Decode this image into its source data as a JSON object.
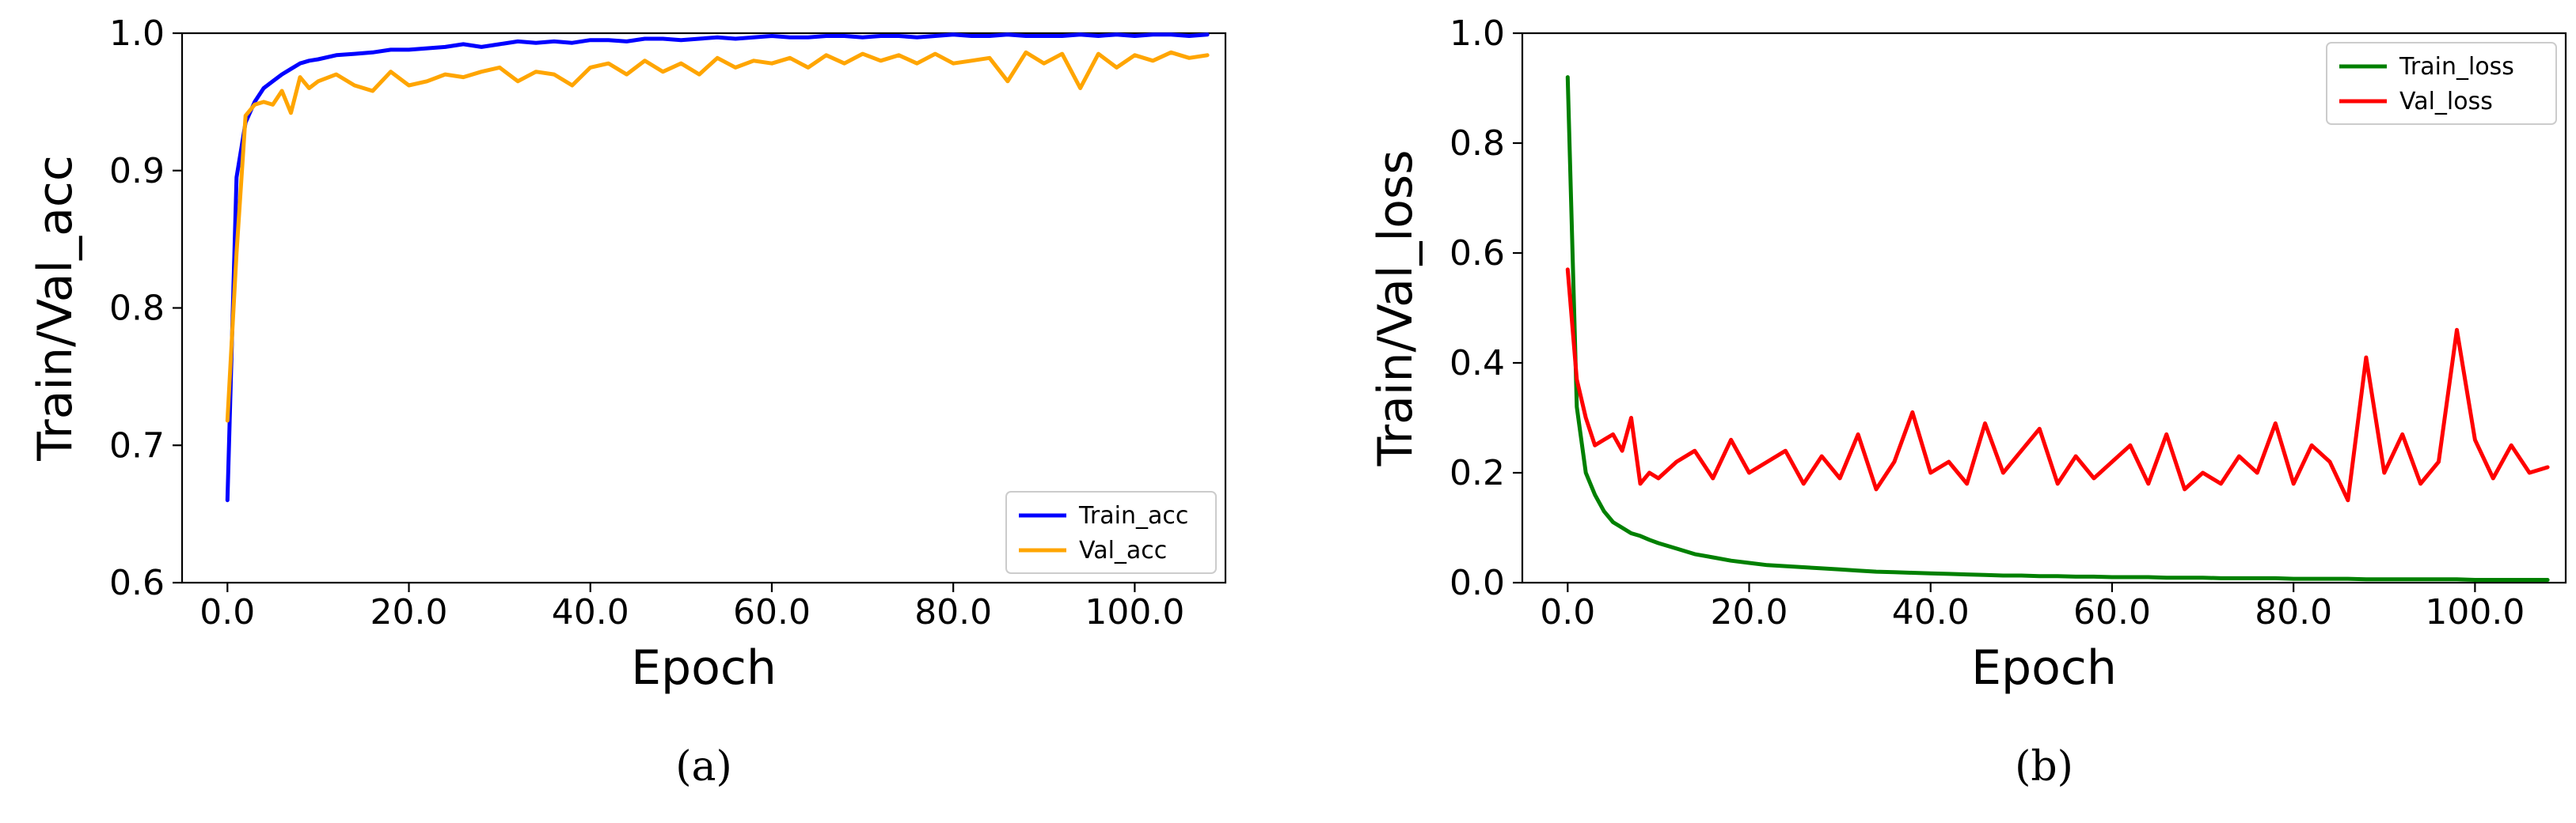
{
  "captions": [
    "(a)",
    "(b)"
  ],
  "chart_data": [
    {
      "type": "line",
      "panel": "(a)",
      "xlabel": "Epoch",
      "ylabel": "Train/Val_acc",
      "xlim": [
        -5,
        110
      ],
      "ylim": [
        0.6,
        1.0
      ],
      "xticks": [
        0,
        20,
        40,
        60,
        80,
        100
      ],
      "xtick_labels": [
        "0.0",
        "20.0",
        "40.0",
        "60.0",
        "80.0",
        "100.0"
      ],
      "yticks": [
        0.6,
        0.7,
        0.8,
        0.9,
        1.0
      ],
      "ytick_labels": [
        "0.6",
        "0.7",
        "0.8",
        "0.9",
        "1.0"
      ],
      "grid": false,
      "legend_position": "bottom-right",
      "series": [
        {
          "name": "Train_acc",
          "color": "#0000ff",
          "x": [
            0,
            1,
            2,
            3,
            4,
            5,
            6,
            7,
            8,
            9,
            10,
            12,
            14,
            16,
            18,
            20,
            22,
            24,
            26,
            28,
            30,
            32,
            34,
            36,
            38,
            40,
            42,
            44,
            46,
            48,
            50,
            52,
            54,
            56,
            58,
            60,
            62,
            64,
            66,
            68,
            70,
            72,
            74,
            76,
            78,
            80,
            82,
            84,
            86,
            88,
            90,
            92,
            94,
            96,
            98,
            100,
            102,
            104,
            106,
            108
          ],
          "y": [
            0.66,
            0.895,
            0.935,
            0.95,
            0.96,
            0.965,
            0.97,
            0.974,
            0.978,
            0.98,
            0.981,
            0.984,
            0.985,
            0.986,
            0.988,
            0.988,
            0.989,
            0.99,
            0.992,
            0.99,
            0.992,
            0.994,
            0.993,
            0.994,
            0.993,
            0.995,
            0.995,
            0.994,
            0.996,
            0.996,
            0.995,
            0.996,
            0.997,
            0.996,
            0.997,
            0.998,
            0.997,
            0.997,
            0.998,
            0.998,
            0.997,
            0.998,
            0.998,
            0.997,
            0.998,
            0.999,
            0.998,
            0.998,
            0.999,
            0.998,
            0.998,
            0.998,
            0.999,
            0.998,
            0.999,
            0.998,
            0.999,
            0.999,
            0.998,
            0.999
          ]
        },
        {
          "name": "Val_acc",
          "color": "#ffa500",
          "x": [
            0,
            1,
            2,
            3,
            4,
            5,
            6,
            7,
            8,
            9,
            10,
            12,
            14,
            16,
            18,
            20,
            22,
            24,
            26,
            28,
            30,
            32,
            34,
            36,
            38,
            40,
            42,
            44,
            46,
            48,
            50,
            52,
            54,
            56,
            58,
            60,
            62,
            64,
            66,
            68,
            70,
            72,
            74,
            76,
            78,
            80,
            82,
            84,
            86,
            88,
            90,
            92,
            94,
            96,
            98,
            100,
            102,
            104,
            106,
            108
          ],
          "y": [
            0.718,
            0.84,
            0.94,
            0.948,
            0.95,
            0.948,
            0.958,
            0.942,
            0.968,
            0.96,
            0.965,
            0.97,
            0.962,
            0.958,
            0.972,
            0.962,
            0.965,
            0.97,
            0.968,
            0.972,
            0.975,
            0.965,
            0.972,
            0.97,
            0.962,
            0.975,
            0.978,
            0.97,
            0.98,
            0.972,
            0.978,
            0.97,
            0.982,
            0.975,
            0.98,
            0.978,
            0.982,
            0.975,
            0.984,
            0.978,
            0.985,
            0.98,
            0.984,
            0.978,
            0.985,
            0.978,
            0.98,
            0.982,
            0.965,
            0.986,
            0.978,
            0.985,
            0.96,
            0.985,
            0.975,
            0.984,
            0.98,
            0.986,
            0.982,
            0.984
          ]
        }
      ]
    },
    {
      "type": "line",
      "panel": "(b)",
      "xlabel": "Epoch",
      "ylabel": "Train/Val_loss",
      "xlim": [
        -5,
        110
      ],
      "ylim": [
        0.0,
        1.0
      ],
      "xticks": [
        0,
        20,
        40,
        60,
        80,
        100
      ],
      "xtick_labels": [
        "0.0",
        "20.0",
        "40.0",
        "60.0",
        "80.0",
        "100.0"
      ],
      "yticks": [
        0.0,
        0.2,
        0.4,
        0.6,
        0.8,
        1.0
      ],
      "ytick_labels": [
        "0.0",
        "0.2",
        "0.4",
        "0.6",
        "0.8",
        "1.0"
      ],
      "grid": false,
      "legend_position": "top-right",
      "series": [
        {
          "name": "Train_loss",
          "color": "#008000",
          "x": [
            0,
            1,
            2,
            3,
            4,
            5,
            6,
            7,
            8,
            9,
            10,
            12,
            14,
            16,
            18,
            20,
            22,
            24,
            26,
            28,
            30,
            32,
            34,
            36,
            38,
            40,
            42,
            44,
            46,
            48,
            50,
            52,
            54,
            56,
            58,
            60,
            62,
            64,
            66,
            68,
            70,
            72,
            74,
            76,
            78,
            80,
            82,
            84,
            86,
            88,
            90,
            92,
            94,
            96,
            98,
            100,
            102,
            104,
            106,
            108
          ],
          "y": [
            0.92,
            0.32,
            0.2,
            0.16,
            0.13,
            0.11,
            0.1,
            0.09,
            0.085,
            0.078,
            0.072,
            0.062,
            0.052,
            0.046,
            0.04,
            0.036,
            0.032,
            0.03,
            0.028,
            0.026,
            0.024,
            0.022,
            0.02,
            0.019,
            0.018,
            0.017,
            0.016,
            0.015,
            0.014,
            0.013,
            0.013,
            0.012,
            0.012,
            0.011,
            0.011,
            0.01,
            0.01,
            0.01,
            0.009,
            0.009,
            0.009,
            0.008,
            0.008,
            0.008,
            0.008,
            0.007,
            0.007,
            0.007,
            0.007,
            0.006,
            0.006,
            0.006,
            0.006,
            0.006,
            0.006,
            0.005,
            0.005,
            0.005,
            0.005,
            0.005
          ]
        },
        {
          "name": "Val_loss",
          "color": "#ff0000",
          "x": [
            0,
            1,
            2,
            3,
            4,
            5,
            6,
            7,
            8,
            9,
            10,
            12,
            14,
            16,
            18,
            20,
            22,
            24,
            26,
            28,
            30,
            32,
            34,
            36,
            38,
            40,
            42,
            44,
            46,
            48,
            50,
            52,
            54,
            56,
            58,
            60,
            62,
            64,
            66,
            68,
            70,
            72,
            74,
            76,
            78,
            80,
            82,
            84,
            86,
            88,
            90,
            92,
            94,
            96,
            98,
            100,
            102,
            104,
            106,
            108
          ],
          "y": [
            0.57,
            0.37,
            0.3,
            0.25,
            0.26,
            0.27,
            0.24,
            0.3,
            0.18,
            0.2,
            0.19,
            0.22,
            0.24,
            0.19,
            0.26,
            0.2,
            0.22,
            0.24,
            0.18,
            0.23,
            0.19,
            0.27,
            0.17,
            0.22,
            0.31,
            0.2,
            0.22,
            0.18,
            0.29,
            0.2,
            0.24,
            0.28,
            0.18,
            0.23,
            0.19,
            0.22,
            0.25,
            0.18,
            0.27,
            0.17,
            0.2,
            0.18,
            0.23,
            0.2,
            0.29,
            0.18,
            0.25,
            0.22,
            0.15,
            0.41,
            0.2,
            0.27,
            0.18,
            0.22,
            0.46,
            0.26,
            0.19,
            0.25,
            0.2,
            0.21
          ]
        }
      ]
    }
  ]
}
